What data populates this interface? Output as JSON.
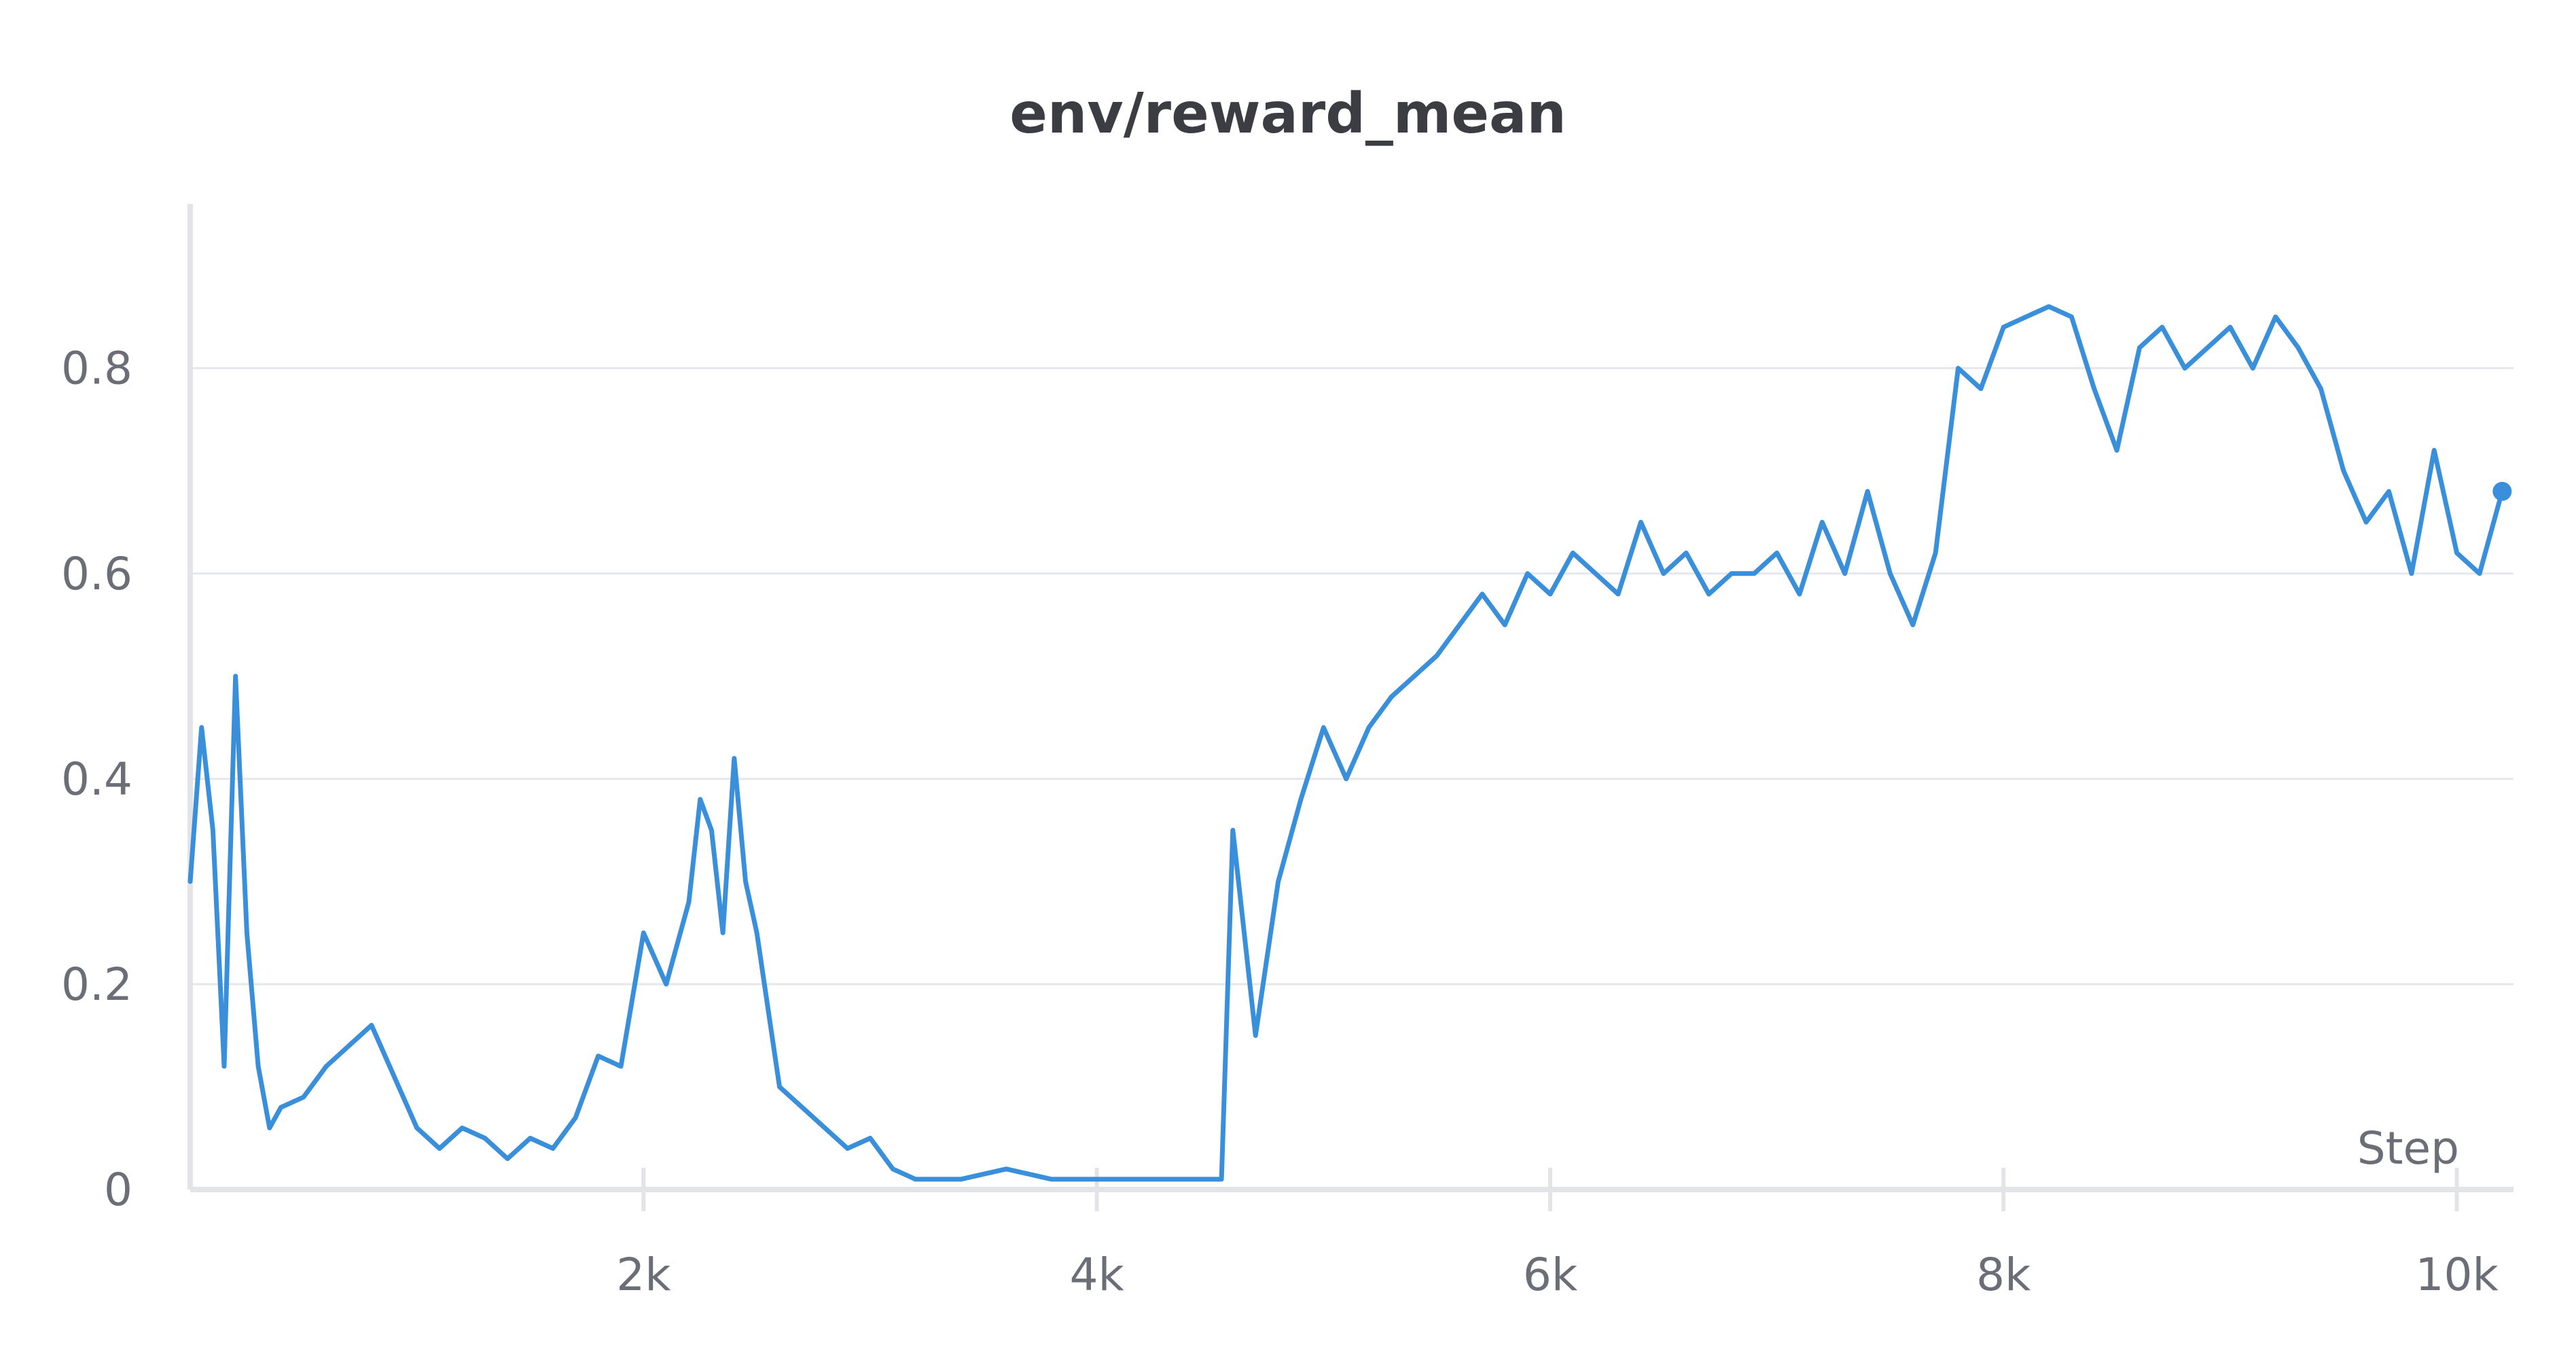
{
  "chart_data": {
    "type": "line",
    "title": "env/reward_mean",
    "xlabel": "Step",
    "ylabel": "",
    "xlim": [
      0,
      10250
    ],
    "ylim": [
      0,
      0.96
    ],
    "x_ticks": [
      2000,
      4000,
      6000,
      8000,
      10000
    ],
    "x_tick_labels": [
      "2k",
      "4k",
      "6k",
      "8k",
      "10k"
    ],
    "y_ticks": [
      0,
      0.2,
      0.4,
      0.6,
      0.8
    ],
    "y_tick_labels": [
      "0",
      "0.2",
      "0.4",
      "0.6",
      "0.8"
    ],
    "grid": true,
    "legend": false,
    "series": [
      {
        "color": "#3a8fdb",
        "x": [
          0,
          50,
          100,
          150,
          200,
          250,
          300,
          350,
          400,
          500,
          600,
          700,
          800,
          900,
          1000,
          1100,
          1200,
          1300,
          1400,
          1500,
          1600,
          1700,
          1800,
          1900,
          2000,
          2100,
          2200,
          2250,
          2300,
          2350,
          2400,
          2450,
          2500,
          2600,
          2700,
          2800,
          2900,
          3000,
          3100,
          3200,
          3400,
          3600,
          3800,
          4000,
          4200,
          4400,
          4550,
          4600,
          4650,
          4700,
          4800,
          4900,
          5000,
          5100,
          5200,
          5300,
          5400,
          5500,
          5600,
          5700,
          5800,
          5900,
          6000,
          6100,
          6200,
          6300,
          6400,
          6500,
          6600,
          6700,
          6800,
          6900,
          7000,
          7100,
          7200,
          7300,
          7400,
          7500,
          7600,
          7700,
          7800,
          7900,
          8000,
          8100,
          8200,
          8300,
          8400,
          8500,
          8600,
          8700,
          8800,
          8900,
          9000,
          9100,
          9200,
          9300,
          9400,
          9500,
          9600,
          9700,
          9800,
          9900,
          10000,
          10100,
          10200
        ],
        "y": [
          0.3,
          0.45,
          0.35,
          0.12,
          0.5,
          0.25,
          0.12,
          0.06,
          0.08,
          0.09,
          0.12,
          0.14,
          0.16,
          0.11,
          0.06,
          0.04,
          0.06,
          0.05,
          0.03,
          0.05,
          0.04,
          0.07,
          0.13,
          0.12,
          0.25,
          0.2,
          0.28,
          0.38,
          0.35,
          0.25,
          0.42,
          0.3,
          0.25,
          0.1,
          0.08,
          0.06,
          0.04,
          0.05,
          0.02,
          0.01,
          0.01,
          0.02,
          0.01,
          0.01,
          0.01,
          0.01,
          0.01,
          0.35,
          0.25,
          0.15,
          0.3,
          0.38,
          0.45,
          0.4,
          0.45,
          0.48,
          0.5,
          0.52,
          0.55,
          0.58,
          0.55,
          0.6,
          0.58,
          0.62,
          0.6,
          0.58,
          0.65,
          0.6,
          0.62,
          0.58,
          0.6,
          0.6,
          0.62,
          0.58,
          0.65,
          0.6,
          0.68,
          0.6,
          0.55,
          0.62,
          0.8,
          0.78,
          0.84,
          0.85,
          0.86,
          0.85,
          0.78,
          0.72,
          0.82,
          0.84,
          0.8,
          0.82,
          0.84,
          0.8,
          0.85,
          0.82,
          0.78,
          0.7,
          0.65,
          0.68,
          0.6,
          0.72,
          0.62,
          0.6,
          0.68
        ]
      }
    ]
  }
}
